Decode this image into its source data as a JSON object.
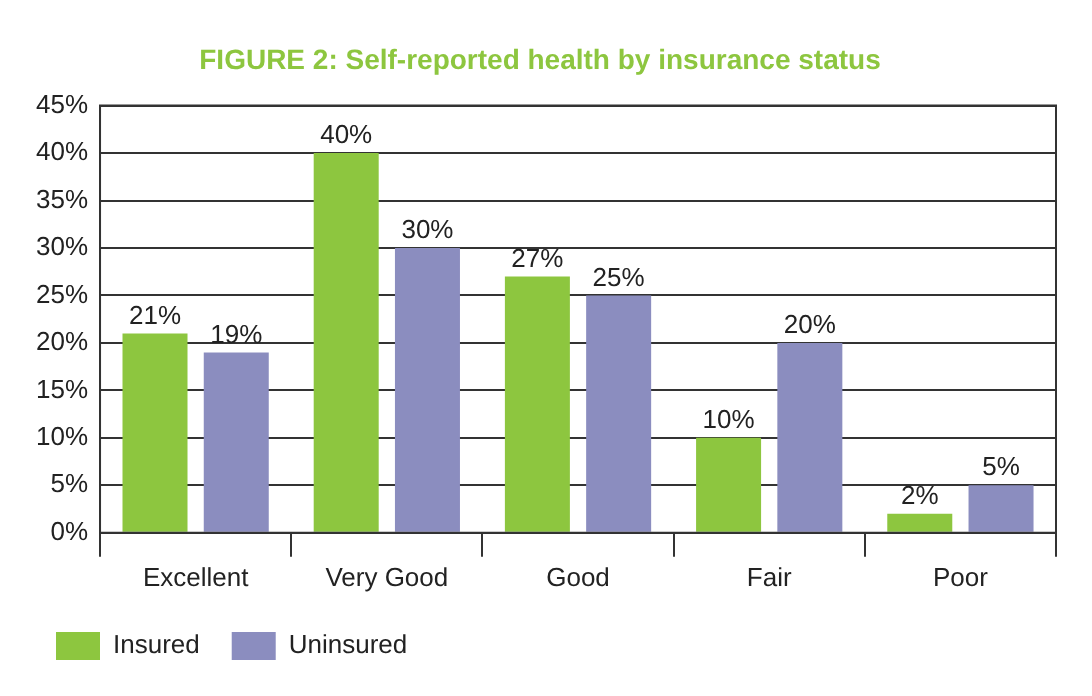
{
  "chart_data": {
    "type": "bar",
    "title": "FIGURE 2: Self-reported health by insurance status",
    "categories": [
      "Excellent",
      "Very Good",
      "Good",
      "Fair",
      "Poor"
    ],
    "series": [
      {
        "name": "Insured",
        "color": "#8dc63f",
        "values": [
          21,
          40,
          27,
          10,
          2
        ],
        "value_labels": [
          "21%",
          "40%",
          "27%",
          "10%",
          "2%"
        ]
      },
      {
        "name": "Uninsured",
        "color": "#8b8dbf",
        "values": [
          19,
          30,
          25,
          20,
          5
        ],
        "value_labels": [
          "19%",
          "30%",
          "25%",
          "20%",
          "5%"
        ]
      }
    ],
    "ylim": [
      0,
      45
    ],
    "yticks": [
      {
        "value": 0,
        "label": "0%"
      },
      {
        "value": 5,
        "label": "5%"
      },
      {
        "value": 10,
        "label": "10%"
      },
      {
        "value": 15,
        "label": "15%"
      },
      {
        "value": 20,
        "label": "20%"
      },
      {
        "value": 25,
        "label": "25%"
      },
      {
        "value": 30,
        "label": "30%"
      },
      {
        "value": 35,
        "label": "35%"
      },
      {
        "value": 40,
        "label": "40%"
      },
      {
        "value": 45,
        "label": "45%"
      }
    ],
    "grid": "y",
    "legend": "bottom left"
  }
}
